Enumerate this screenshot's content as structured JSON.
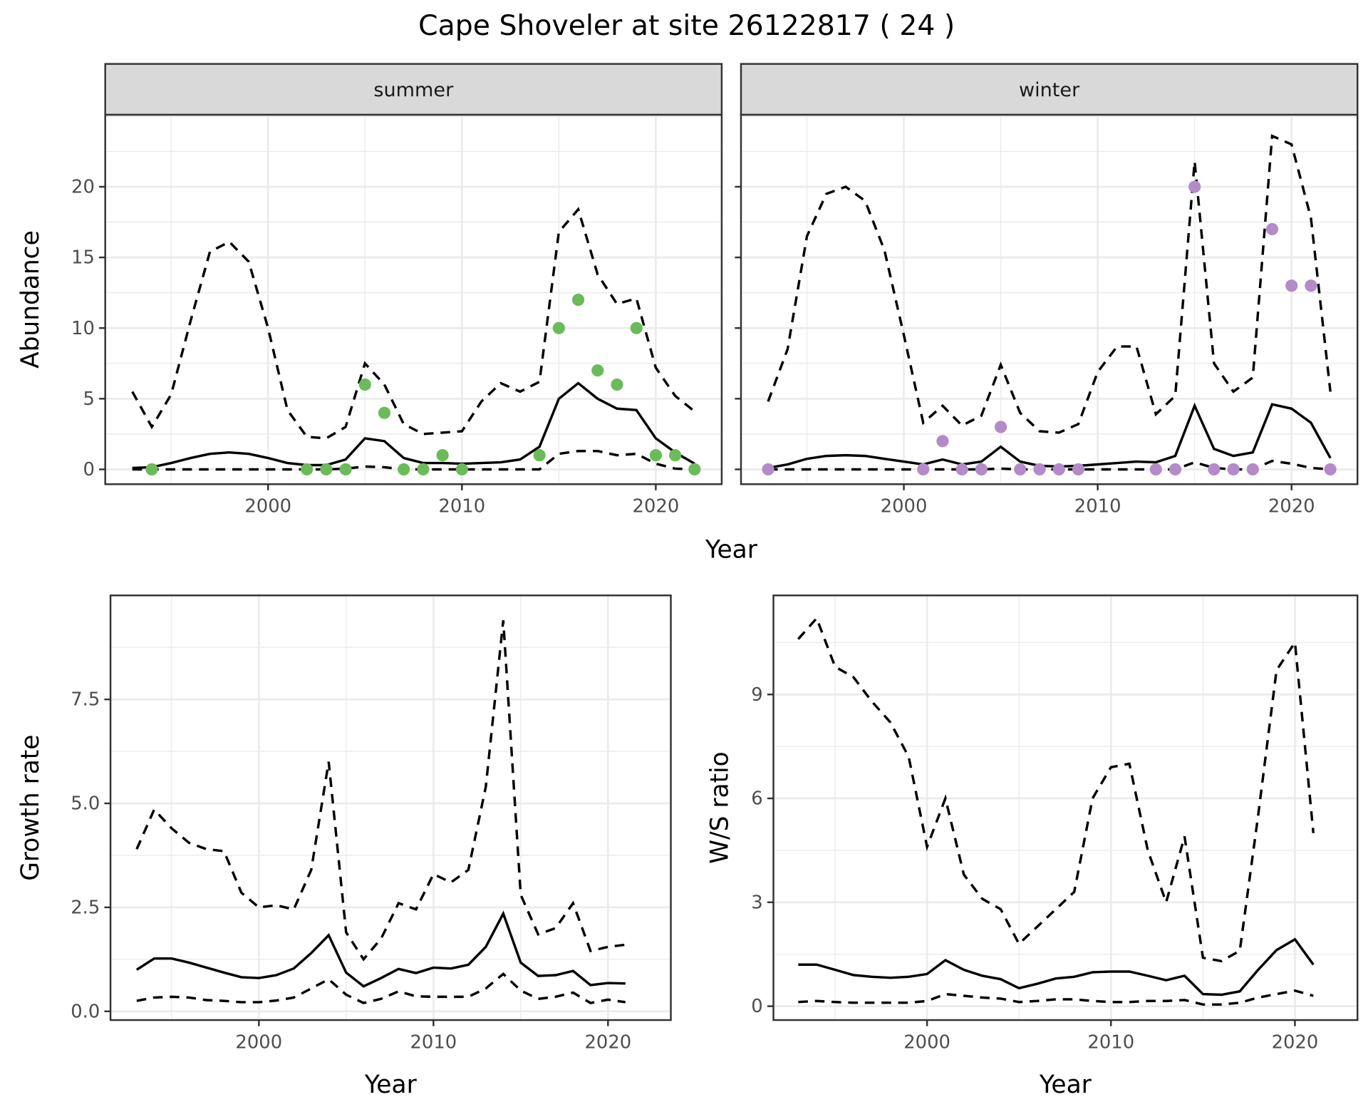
{
  "title": "Cape Shoveler at site 26122817 ( 24 )",
  "colors": {
    "summer_points": "#6bbb5a",
    "winter_points": "#b48bc8",
    "grid": "#ebebeb",
    "strip_bg": "#d9d9d9"
  },
  "chart_data": [
    {
      "id": "summer",
      "type": "line",
      "strip": "summer",
      "xlabel": "Year",
      "ylabel": "Abundance",
      "xlim": [
        1991.6,
        2023.4
      ],
      "ylim": [
        -1.05,
        25.1
      ],
      "xticks": [
        2000,
        2010,
        2020
      ],
      "yticks": [
        0,
        5,
        10,
        15,
        20
      ],
      "x": [
        1993,
        1994,
        1995,
        1996,
        1997,
        1998,
        1999,
        2000,
        2001,
        2002,
        2003,
        2004,
        2005,
        2006,
        2007,
        2008,
        2009,
        2010,
        2011,
        2012,
        2013,
        2014,
        2015,
        2016,
        2017,
        2018,
        2019,
        2020,
        2021,
        2022
      ],
      "series": [
        {
          "name": "upper",
          "style": "dashed",
          "values": [
            5.5,
            3.0,
            5.3,
            10.5,
            15.4,
            16.1,
            14.7,
            10,
            4.2,
            2.3,
            2.2,
            3,
            7.5,
            6,
            3.2,
            2.5,
            2.6,
            2.7,
            4.8,
            6.1,
            5.5,
            6.2,
            16.8,
            18.4,
            13.8,
            11.7,
            12.1,
            7.2,
            5.2,
            4.1
          ]
        },
        {
          "name": "mean",
          "style": "solid",
          "values": [
            0.1,
            0.15,
            0.45,
            0.8,
            1.1,
            1.2,
            1.1,
            0.8,
            0.45,
            0.3,
            0.3,
            0.7,
            2.2,
            2.0,
            0.8,
            0.45,
            0.45,
            0.4,
            0.45,
            0.5,
            0.7,
            1.6,
            5.0,
            6.1,
            5.0,
            4.3,
            4.2,
            2.2,
            1.2,
            0.4
          ]
        },
        {
          "name": "lower",
          "style": "dashed",
          "values": [
            0,
            0,
            0,
            0,
            0,
            0,
            0,
            0,
            0,
            0,
            0,
            0.05,
            0.2,
            0.15,
            0,
            0,
            0,
            0,
            0,
            0,
            0,
            0,
            1.1,
            1.3,
            1.3,
            1.0,
            1.1,
            0.4,
            0.05,
            0
          ]
        }
      ],
      "points": {
        "x": [
          1994,
          2002,
          2003,
          2004,
          2005,
          2006,
          2007,
          2008,
          2009,
          2010,
          2014,
          2015,
          2016,
          2017,
          2018,
          2019,
          2020,
          2021,
          2022
        ],
        "y": [
          0,
          0,
          0,
          0,
          6,
          4,
          0,
          0,
          1,
          0,
          1,
          10,
          12,
          7,
          6,
          10,
          1,
          1,
          0
        ],
        "color": "#6bbb5a"
      }
    },
    {
      "id": "winter",
      "type": "line",
      "strip": "winter",
      "xlabel": "Year",
      "ylabel": "Abundance",
      "xlim": [
        1991.6,
        2023.4
      ],
      "ylim": [
        -1.05,
        25.1
      ],
      "xticks": [
        2000,
        2010,
        2020
      ],
      "yticks": [
        0,
        5,
        10,
        15,
        20
      ],
      "x": [
        1993,
        1994,
        1995,
        1996,
        1997,
        1998,
        1999,
        2000,
        2001,
        2002,
        2003,
        2004,
        2005,
        2006,
        2007,
        2008,
        2009,
        2010,
        2011,
        2012,
        2013,
        2014,
        2015,
        2016,
        2017,
        2018,
        2019,
        2020,
        2021,
        2022
      ],
      "series": [
        {
          "name": "upper",
          "style": "dashed",
          "values": [
            4.8,
            8.5,
            16.5,
            19.5,
            20,
            19,
            15.5,
            9.5,
            3.3,
            4.5,
            3.1,
            3.8,
            7.4,
            4,
            2.7,
            2.6,
            3.2,
            6.9,
            8.7,
            8.7,
            3.9,
            5.2,
            21.8,
            7.5,
            5.5,
            6.5,
            23.6,
            23.0,
            17.8,
            5.5
          ]
        },
        {
          "name": "mean",
          "style": "solid",
          "values": [
            0.1,
            0.35,
            0.75,
            0.95,
            1.0,
            0.95,
            0.75,
            0.55,
            0.35,
            0.7,
            0.35,
            0.55,
            1.6,
            0.55,
            0.25,
            0.2,
            0.25,
            0.35,
            0.45,
            0.55,
            0.5,
            0.95,
            4.5,
            1.45,
            0.95,
            1.2,
            4.6,
            4.3,
            3.3,
            0.8
          ]
        },
        {
          "name": "lower",
          "style": "dashed",
          "values": [
            0,
            0,
            0,
            0,
            0,
            0,
            0,
            0,
            0,
            0,
            0,
            0,
            0.05,
            0,
            0,
            0,
            0,
            0,
            0,
            0,
            0,
            0,
            0.5,
            0.1,
            0,
            0,
            0.6,
            0.4,
            0.1,
            0
          ]
        }
      ],
      "points": {
        "x": [
          1993,
          2001,
          2002,
          2003,
          2004,
          2005,
          2006,
          2007,
          2008,
          2009,
          2013,
          2014,
          2015,
          2016,
          2017,
          2018,
          2019,
          2020,
          2021,
          2022
        ],
        "y": [
          0,
          0,
          2,
          0,
          0,
          3,
          0,
          0,
          0,
          0,
          0,
          0,
          20,
          0,
          0,
          0,
          17,
          13,
          13,
          0
        ],
        "color": "#b48bc8"
      }
    },
    {
      "id": "growth",
      "type": "line",
      "xlabel": "Year",
      "ylabel": "Growth rate",
      "xlim": [
        1991.5,
        2023.6
      ],
      "ylim": [
        -0.21,
        10.0
      ],
      "xticks": [
        2000,
        2010,
        2020
      ],
      "yticks": [
        0.0,
        2.5,
        5.0,
        7.5
      ],
      "ytick_labels": [
        "0.0",
        "2.5",
        "5.0",
        "7.5"
      ],
      "x": [
        1993,
        1994,
        1995,
        1996,
        1997,
        1998,
        1999,
        2000,
        2001,
        2002,
        2003,
        2004,
        2005,
        2006,
        2007,
        2008,
        2009,
        2010,
        2011,
        2012,
        2013,
        2014,
        2015,
        2016,
        2017,
        2018,
        2019,
        2020,
        2021
      ],
      "series": [
        {
          "name": "upper",
          "style": "dashed",
          "values": [
            3.9,
            4.85,
            4.4,
            4.05,
            3.9,
            3.85,
            2.85,
            2.5,
            2.55,
            2.45,
            3.4,
            6.0,
            1.9,
            1.25,
            1.75,
            2.6,
            2.45,
            3.3,
            3.1,
            3.4,
            5.4,
            9.4,
            2.8,
            1.85,
            2.0,
            2.6,
            1.45,
            1.55,
            1.6
          ]
        },
        {
          "name": "mean",
          "style": "solid",
          "values": [
            1.0,
            1.27,
            1.27,
            1.17,
            1.05,
            0.93,
            0.82,
            0.8,
            0.87,
            1.03,
            1.4,
            1.83,
            0.93,
            0.6,
            0.8,
            1.02,
            0.92,
            1.05,
            1.03,
            1.12,
            1.55,
            2.35,
            1.17,
            0.85,
            0.87,
            0.97,
            0.63,
            0.68,
            0.67
          ]
        },
        {
          "name": "lower",
          "style": "dashed",
          "values": [
            0.25,
            0.33,
            0.35,
            0.33,
            0.27,
            0.25,
            0.22,
            0.22,
            0.26,
            0.33,
            0.55,
            0.77,
            0.4,
            0.2,
            0.3,
            0.48,
            0.36,
            0.35,
            0.35,
            0.35,
            0.55,
            0.9,
            0.5,
            0.3,
            0.35,
            0.45,
            0.2,
            0.28,
            0.22
          ]
        }
      ]
    },
    {
      "id": "ws",
      "type": "line",
      "xlabel": "Year",
      "ylabel": "W/S ratio",
      "xlim": [
        1991.65,
        2023.4
      ],
      "ylim": [
        -0.4,
        11.86
      ],
      "xticks": [
        2000,
        2010,
        2020
      ],
      "yticks": [
        0,
        3,
        6,
        9
      ],
      "x": [
        1993,
        1994,
        1995,
        1996,
        1997,
        1998,
        1999,
        2000,
        2001,
        2002,
        2003,
        2004,
        2005,
        2006,
        2007,
        2008,
        2009,
        2010,
        2011,
        2012,
        2013,
        2014,
        2015,
        2016,
        2017,
        2018,
        2019,
        2020,
        2021
      ],
      "series": [
        {
          "name": "upper",
          "style": "dashed",
          "values": [
            10.6,
            11.2,
            9.8,
            9.5,
            8.8,
            8.2,
            7.2,
            4.6,
            6.0,
            3.8,
            3.1,
            2.8,
            1.8,
            2.3,
            2.8,
            3.3,
            6.0,
            6.9,
            7.0,
            4.5,
            3.0,
            4.9,
            1.4,
            1.3,
            1.6,
            5.5,
            9.7,
            10.5,
            5.0
          ]
        },
        {
          "name": "mean",
          "style": "solid",
          "values": [
            1.2,
            1.2,
            1.05,
            0.9,
            0.85,
            0.82,
            0.85,
            0.93,
            1.33,
            1.05,
            0.88,
            0.78,
            0.52,
            0.65,
            0.8,
            0.85,
            0.98,
            1.0,
            1.0,
            0.88,
            0.75,
            0.88,
            0.35,
            0.33,
            0.43,
            1.05,
            1.62,
            1.93,
            1.2
          ]
        },
        {
          "name": "lower",
          "style": "dashed",
          "values": [
            0.12,
            0.15,
            0.12,
            0.1,
            0.1,
            0.1,
            0.1,
            0.15,
            0.35,
            0.3,
            0.25,
            0.22,
            0.12,
            0.15,
            0.2,
            0.2,
            0.15,
            0.12,
            0.12,
            0.15,
            0.15,
            0.18,
            0.05,
            0.05,
            0.1,
            0.25,
            0.35,
            0.45,
            0.3
          ]
        }
      ]
    }
  ]
}
